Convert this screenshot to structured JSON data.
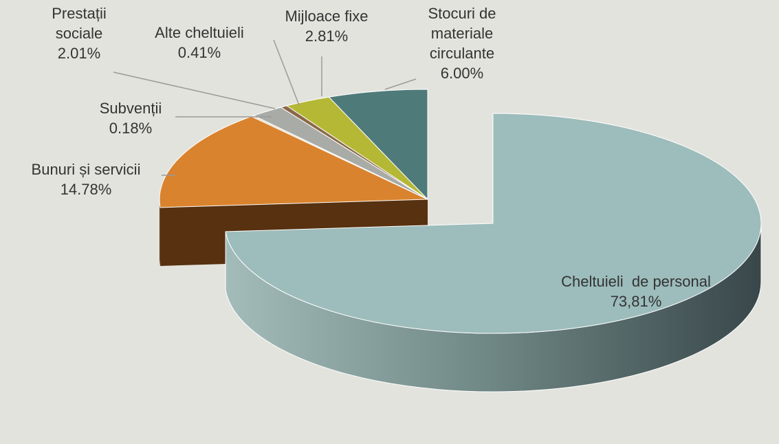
{
  "chart_data": {
    "type": "pie",
    "categories": [
      "Cheltuieli  de personal",
      "Bunuri și servicii",
      "Subvenții",
      "Prestații sociale",
      "Alte cheltuieli",
      "Mijloace fixe",
      "Stocuri de materiale circulante"
    ],
    "values": [
      73.81,
      14.78,
      0.18,
      2.01,
      0.41,
      2.81,
      6.0
    ],
    "value_labels": [
      "73,81%",
      "14.78%",
      "0.18%",
      "2.01%",
      "0.41%",
      "2.81%",
      "6.00%"
    ],
    "colors": [
      "#9dbcbc",
      "#d9832f",
      "#e4dcc4",
      "#a9aca6",
      "#8a6848",
      "#b5b835",
      "#4f7a7a"
    ]
  }
}
